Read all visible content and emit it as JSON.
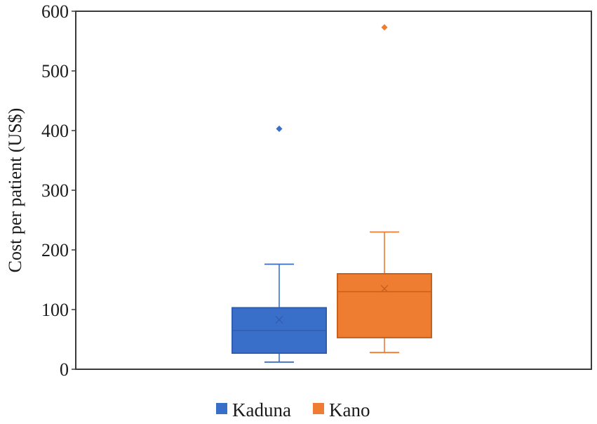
{
  "chart_data": {
    "type": "box",
    "title": "",
    "xlabel": "",
    "ylabel": "Cost per patient (US$)",
    "ylim": [
      0,
      600
    ],
    "yticks": [
      0,
      100,
      200,
      300,
      400,
      500,
      600
    ],
    "grid": false,
    "legend_position": "bottom",
    "series": [
      {
        "name": "Kaduna",
        "color": "#3a6fc9",
        "stroke": "#2f5db0",
        "min": 12,
        "q1": 27,
        "median": 65,
        "q3": 103,
        "max": 176,
        "mean": 83,
        "outliers": [
          403
        ]
      },
      {
        "name": "Kano",
        "color": "#ee7d31",
        "stroke": "#c8611b",
        "min": 28,
        "q1": 53,
        "median": 130,
        "q3": 160,
        "max": 230,
        "mean": 135,
        "outliers": [
          573
        ]
      }
    ]
  }
}
